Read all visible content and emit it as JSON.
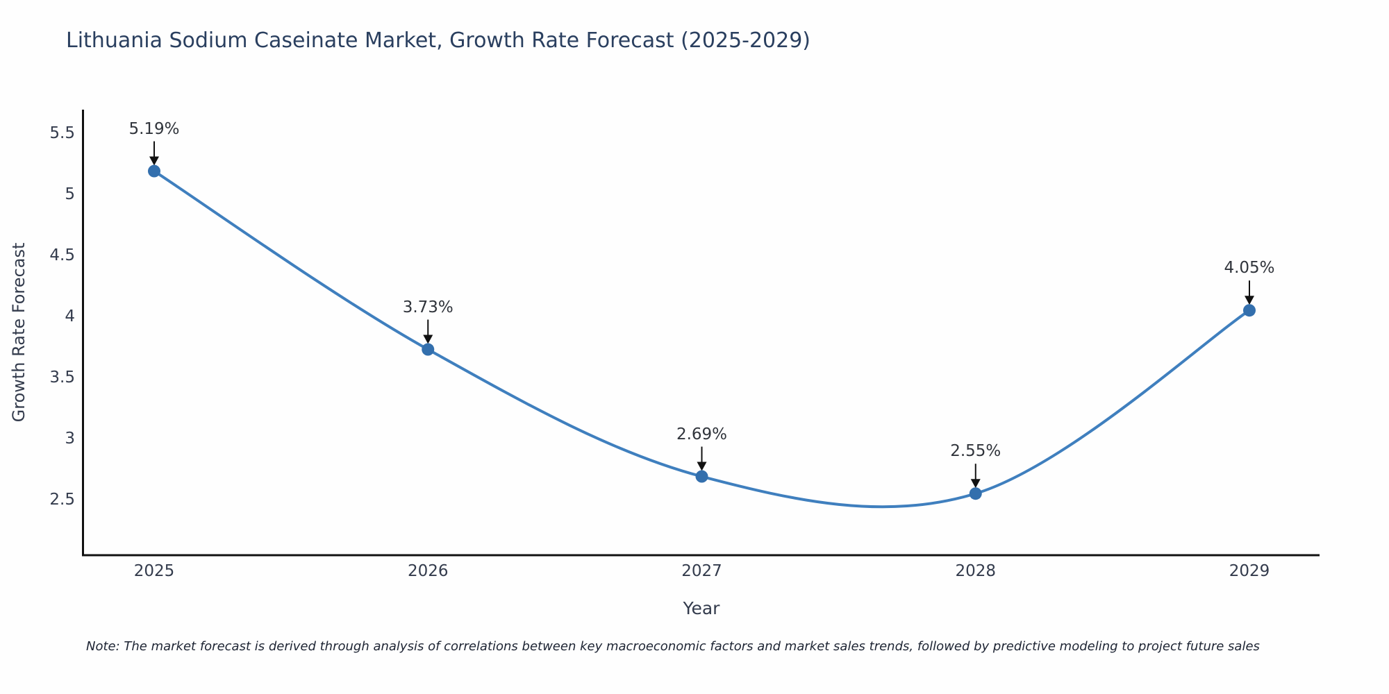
{
  "chart_data": {
    "type": "line",
    "title": "Lithuania Sodium Caseinate Market, Growth Rate Forecast (2025-2029)",
    "xlabel": "Year",
    "ylabel": "Growth Rate Forecast",
    "categories": [
      "2025",
      "2026",
      "2027",
      "2028",
      "2029"
    ],
    "series": [
      {
        "name": "Growth Rate Forecast",
        "values": [
          5.19,
          3.73,
          2.69,
          2.55,
          4.05
        ]
      }
    ],
    "point_labels": [
      "5.19%",
      "3.73%",
      "2.69%",
      "2.55%",
      "4.05%"
    ],
    "ytick_labels": [
      "5.5",
      "5",
      "4.5",
      "4",
      "3.5",
      "3",
      "2.5"
    ],
    "ytick_values": [
      5.5,
      5.0,
      4.5,
      4.0,
      3.5,
      3.0,
      2.5
    ],
    "ylim": [
      2.04,
      5.69
    ],
    "grid": false,
    "legend_position": "none",
    "line_color": "#3f7fbe",
    "marker_color": "#336fad",
    "axis_color": "#111111",
    "arrow_color": "#111111",
    "title_color": "#2a3f5f",
    "note": "Note: The market forecast is derived through analysis of correlations between key macroeconomic factors and market sales trends, followed by predictive modeling to project future sales"
  }
}
